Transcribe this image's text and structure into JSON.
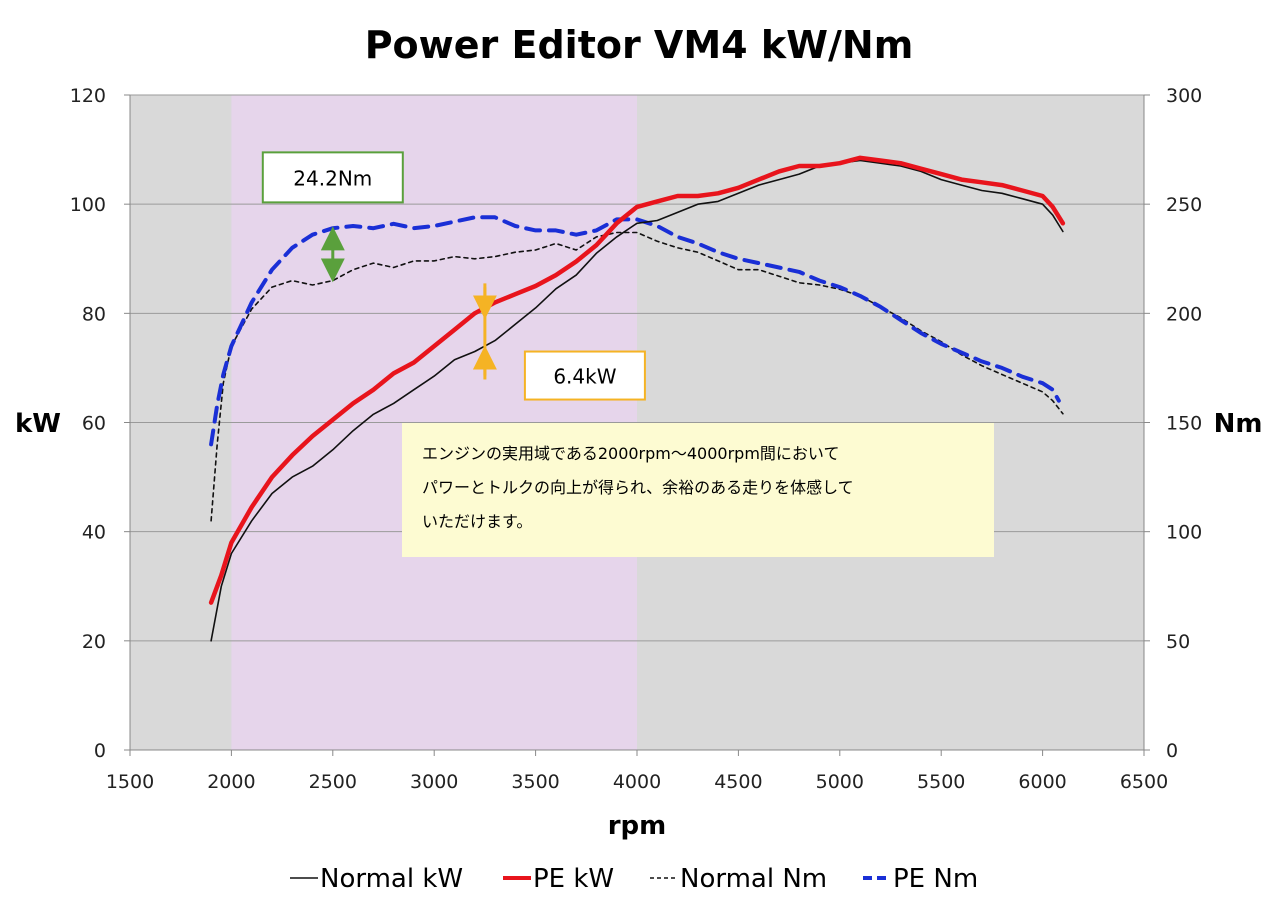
{
  "chart_data": {
    "type": "line",
    "title": "Power Editor VM4 kW/Nm",
    "xlabel": "rpm",
    "ylabel_left": "kW",
    "ylabel_right": "Nm",
    "xlim": [
      1500,
      6500
    ],
    "x_ticks": [
      1500,
      2000,
      2500,
      3000,
      3500,
      4000,
      4500,
      5000,
      5500,
      6000,
      6500
    ],
    "ylim_left": [
      0,
      120
    ],
    "y_ticks_left": [
      0,
      20,
      40,
      60,
      80,
      100,
      120
    ],
    "ylim_right": [
      0,
      300
    ],
    "y_ticks_right": [
      0,
      50,
      100,
      150,
      200,
      250,
      300
    ],
    "grid": true,
    "legend_position": "bottom",
    "highlight_range": [
      2000,
      4000
    ],
    "colors": {
      "plot_background": "#d9d9d9",
      "highlight": "#e6d5eb",
      "normal_kw": "#111111",
      "pe_kw": "#e8141c",
      "normal_nm": "#111111",
      "pe_nm": "#1a2fd6",
      "callout_green": "#5aa03c",
      "callout_orange": "#f5b324",
      "note_bg": "#fdfbd2"
    },
    "series": [
      {
        "name": "Normal kW",
        "axis": "left",
        "style": "solid",
        "points": [
          [
            1900,
            20
          ],
          [
            1950,
            30
          ],
          [
            2000,
            36
          ],
          [
            2100,
            42
          ],
          [
            2200,
            47
          ],
          [
            2300,
            50
          ],
          [
            2400,
            52
          ],
          [
            2500,
            55
          ],
          [
            2600,
            58.5
          ],
          [
            2700,
            61.5
          ],
          [
            2800,
            63.5
          ],
          [
            2900,
            66
          ],
          [
            3000,
            68.5
          ],
          [
            3100,
            71.5
          ],
          [
            3200,
            73
          ],
          [
            3300,
            75
          ],
          [
            3400,
            78
          ],
          [
            3500,
            81
          ],
          [
            3600,
            84.5
          ],
          [
            3700,
            87
          ],
          [
            3800,
            91
          ],
          [
            3900,
            94
          ],
          [
            4000,
            96.5
          ],
          [
            4100,
            97
          ],
          [
            4200,
            98.5
          ],
          [
            4300,
            100
          ],
          [
            4400,
            100.5
          ],
          [
            4500,
            102
          ],
          [
            4600,
            103.5
          ],
          [
            4700,
            104.5
          ],
          [
            4800,
            105.5
          ],
          [
            4900,
            107
          ],
          [
            5000,
            107.5
          ],
          [
            5100,
            108
          ],
          [
            5200,
            107.5
          ],
          [
            5300,
            107
          ],
          [
            5400,
            106
          ],
          [
            5500,
            104.5
          ],
          [
            5600,
            103.5
          ],
          [
            5700,
            102.5
          ],
          [
            5800,
            102
          ],
          [
            5900,
            101
          ],
          [
            6000,
            100
          ],
          [
            6050,
            98
          ],
          [
            6100,
            95
          ]
        ]
      },
      {
        "name": "PE kW",
        "axis": "left",
        "style": "solid",
        "points": [
          [
            1900,
            27
          ],
          [
            1950,
            32
          ],
          [
            2000,
            38
          ],
          [
            2100,
            44.5
          ],
          [
            2200,
            50
          ],
          [
            2300,
            54
          ],
          [
            2400,
            57.5
          ],
          [
            2500,
            60.5
          ],
          [
            2600,
            63.5
          ],
          [
            2700,
            66
          ],
          [
            2800,
            69
          ],
          [
            2900,
            71
          ],
          [
            3000,
            74
          ],
          [
            3100,
            77
          ],
          [
            3200,
            80
          ],
          [
            3300,
            82
          ],
          [
            3400,
            83.5
          ],
          [
            3500,
            85
          ],
          [
            3600,
            87
          ],
          [
            3700,
            89.5
          ],
          [
            3800,
            92.5
          ],
          [
            3900,
            96.5
          ],
          [
            4000,
            99.5
          ],
          [
            4100,
            100.5
          ],
          [
            4200,
            101.5
          ],
          [
            4300,
            101.5
          ],
          [
            4400,
            102
          ],
          [
            4500,
            103
          ],
          [
            4600,
            104.5
          ],
          [
            4700,
            106
          ],
          [
            4800,
            107
          ],
          [
            4900,
            107
          ],
          [
            5000,
            107.5
          ],
          [
            5100,
            108.5
          ],
          [
            5200,
            108
          ],
          [
            5300,
            107.5
          ],
          [
            5400,
            106.5
          ],
          [
            5500,
            105.5
          ],
          [
            5600,
            104.5
          ],
          [
            5700,
            104
          ],
          [
            5800,
            103.5
          ],
          [
            5900,
            102.5
          ],
          [
            6000,
            101.5
          ],
          [
            6050,
            99.5
          ],
          [
            6100,
            96.5
          ]
        ]
      },
      {
        "name": "Normal Nm",
        "axis": "right",
        "style": "dotted",
        "points": [
          [
            1900,
            105
          ],
          [
            1930,
            140
          ],
          [
            1960,
            168
          ],
          [
            2000,
            185
          ],
          [
            2100,
            202
          ],
          [
            2200,
            212
          ],
          [
            2300,
            215
          ],
          [
            2400,
            213
          ],
          [
            2500,
            215
          ],
          [
            2600,
            220
          ],
          [
            2700,
            223
          ],
          [
            2800,
            221
          ],
          [
            2900,
            224
          ],
          [
            3000,
            224
          ],
          [
            3100,
            226
          ],
          [
            3200,
            225
          ],
          [
            3300,
            226
          ],
          [
            3400,
            228
          ],
          [
            3500,
            229
          ],
          [
            3600,
            232
          ],
          [
            3700,
            229
          ],
          [
            3800,
            235
          ],
          [
            3900,
            237
          ],
          [
            4000,
            237
          ],
          [
            4100,
            233
          ],
          [
            4200,
            230
          ],
          [
            4300,
            228
          ],
          [
            4400,
            224
          ],
          [
            4500,
            220
          ],
          [
            4600,
            220
          ],
          [
            4700,
            217
          ],
          [
            4800,
            214
          ],
          [
            4900,
            213
          ],
          [
            5000,
            211
          ],
          [
            5100,
            208
          ],
          [
            5200,
            203
          ],
          [
            5300,
            198
          ],
          [
            5400,
            192
          ],
          [
            5500,
            187
          ],
          [
            5600,
            181
          ],
          [
            5700,
            176
          ],
          [
            5800,
            172
          ],
          [
            5900,
            168
          ],
          [
            6000,
            164
          ],
          [
            6050,
            160
          ],
          [
            6100,
            154
          ]
        ]
      },
      {
        "name": "PE Nm",
        "axis": "right",
        "style": "dashed",
        "points": [
          [
            1900,
            140
          ],
          [
            1930,
            158
          ],
          [
            1960,
            172
          ],
          [
            2000,
            185
          ],
          [
            2100,
            205
          ],
          [
            2200,
            220
          ],
          [
            2300,
            230
          ],
          [
            2400,
            236
          ],
          [
            2500,
            239
          ],
          [
            2600,
            240
          ],
          [
            2700,
            239
          ],
          [
            2800,
            241
          ],
          [
            2900,
            239
          ],
          [
            3000,
            240
          ],
          [
            3100,
            242
          ],
          [
            3200,
            244
          ],
          [
            3300,
            244
          ],
          [
            3400,
            240
          ],
          [
            3500,
            238
          ],
          [
            3600,
            238
          ],
          [
            3700,
            236
          ],
          [
            3800,
            238
          ],
          [
            3900,
            243
          ],
          [
            4000,
            243
          ],
          [
            4100,
            240
          ],
          [
            4200,
            235
          ],
          [
            4300,
            232
          ],
          [
            4400,
            228
          ],
          [
            4500,
            225
          ],
          [
            4600,
            223
          ],
          [
            4700,
            221
          ],
          [
            4800,
            219
          ],
          [
            4900,
            215
          ],
          [
            5000,
            212
          ],
          [
            5100,
            208
          ],
          [
            5200,
            203
          ],
          [
            5300,
            197
          ],
          [
            5400,
            191
          ],
          [
            5500,
            186
          ],
          [
            5600,
            182
          ],
          [
            5700,
            178
          ],
          [
            5800,
            175
          ],
          [
            5900,
            171
          ],
          [
            6000,
            168
          ],
          [
            6050,
            165
          ],
          [
            6080,
            160
          ]
        ]
      }
    ],
    "annotations": [
      {
        "id": "torque_gain",
        "text": "24.2Nm",
        "arrow_x": 2500,
        "arrow_from_nm": 216,
        "arrow_to_nm": 238
      },
      {
        "id": "power_gain",
        "text": "6.4kW",
        "arrow_x": 3250,
        "arrow_from_kw": 73,
        "arrow_to_kw": 80
      },
      {
        "id": "note",
        "lines": [
          "エンジンの実用域である2000rpm～4000rpm間において",
          "パワーとトルクの向上が得られ、余裕のある走りを体感して",
          "いただけます。"
        ]
      }
    ]
  }
}
